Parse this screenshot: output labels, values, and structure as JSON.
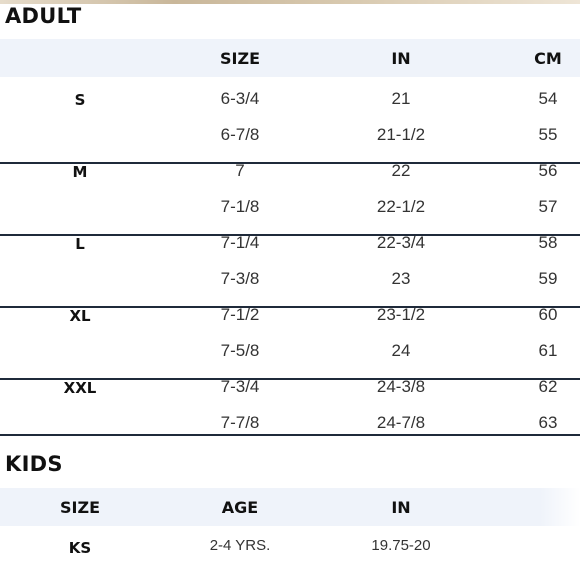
{
  "adult": {
    "title": "ADULT",
    "headers": {
      "size": "SIZE",
      "in": "IN",
      "cm": "CM"
    },
    "groups": [
      {
        "label": "S",
        "rows": [
          {
            "size": "6-3/4",
            "in": "21",
            "cm": "54"
          },
          {
            "size": "6-7/8",
            "in": "21-1/2",
            "cm": "55"
          }
        ]
      },
      {
        "label": "M",
        "rows": [
          {
            "size": "7",
            "in": "22",
            "cm": "56"
          },
          {
            "size": "7-1/8",
            "in": "22-1/2",
            "cm": "57"
          }
        ]
      },
      {
        "label": "L",
        "rows": [
          {
            "size": "7-1/4",
            "in": "22-3/4",
            "cm": "58"
          },
          {
            "size": "7-3/8",
            "in": "23",
            "cm": "59"
          }
        ]
      },
      {
        "label": "XL",
        "rows": [
          {
            "size": "7-1/2",
            "in": "23-1/2",
            "cm": "60"
          },
          {
            "size": "7-5/8",
            "in": "24",
            "cm": "61"
          }
        ]
      },
      {
        "label": "XXL",
        "rows": [
          {
            "size": "7-3/4",
            "in": "24-3/8",
            "cm": "62"
          },
          {
            "size": "7-7/8",
            "in": "24-7/8",
            "cm": "63"
          }
        ]
      }
    ]
  },
  "kids": {
    "title": "KIDS",
    "headers": {
      "size": "SIZE",
      "age": "AGE",
      "in": "IN"
    },
    "rows": [
      {
        "size": "KS",
        "age": "2-4 YRS.",
        "in": "19.75-20"
      }
    ]
  }
}
